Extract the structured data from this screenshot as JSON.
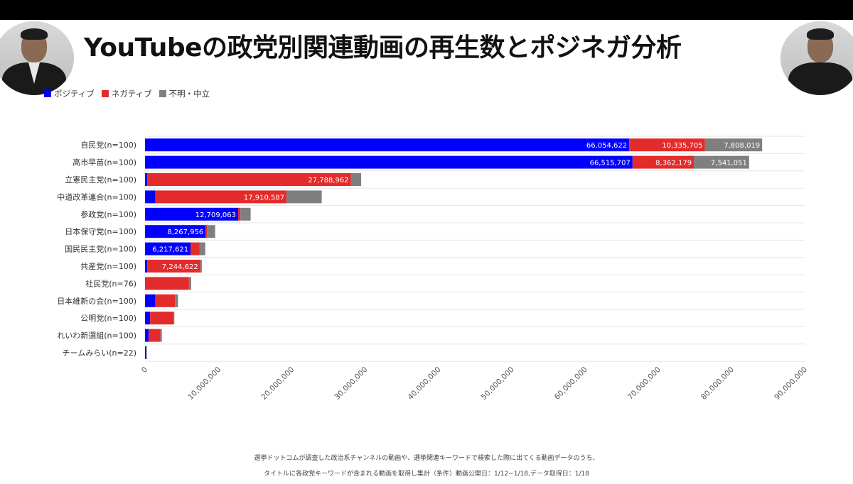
{
  "title": "YouTubeの政党別関連動画の再生数とポジネガ分析",
  "legend": [
    {
      "label": "ポジティブ",
      "color": "#0000ff"
    },
    {
      "label": "ネガティブ",
      "color": "#e32b2b"
    },
    {
      "label": "不明・中立",
      "color": "#7f7f7f"
    }
  ],
  "footnotes": [
    "選挙ドットコムが調査した政治系チャンネルの動画や、選挙関連キーワードで検索した際に出てくる動画データのうち、",
    "タイトルに各政党キーワードが含まれる動画を取得し集計（条件）動画公開日：1/12~1/18,データ取得日：1/18"
  ],
  "chart_data": {
    "type": "bar",
    "orientation": "horizontal",
    "stacked": true,
    "xlim": [
      0,
      90000000
    ],
    "x_ticks": [
      0,
      10000000,
      20000000,
      30000000,
      40000000,
      50000000,
      60000000,
      70000000,
      80000000,
      90000000
    ],
    "x_tick_labels": [
      "0",
      "10,000,000",
      "20,000,000",
      "30,000,000",
      "40,000,000",
      "50,000,000",
      "60,000,000",
      "70,000,000",
      "80,000,000",
      "90,000,000"
    ],
    "categories": [
      "自民党(n=100)",
      "高市早苗(n=100)",
      "立憲民主党(n=100)",
      "中道改革連合(n=100)",
      "参政党(n=100)",
      "日本保守党(n=100)",
      "国民民主党(n=100)",
      "共産党(n=100)",
      "社民党(n=76)",
      "日本維新の会(n=100)",
      "公明党(n=100)",
      "れいわ新選組(n=100)",
      "チームみらい(n=22)"
    ],
    "series": [
      {
        "name": "ポジティブ",
        "color": "#0000ff",
        "values": [
          66054622,
          66515707,
          300000,
          1400000,
          12709063,
          8267956,
          6217621,
          300000,
          0,
          1400000,
          700000,
          500000,
          150000
        ],
        "labels": [
          "66,054,622",
          "66,515,707",
          "",
          "",
          "12,709,063",
          "8,267,956",
          "6,217,621",
          "",
          "",
          "",
          "",
          "",
          ""
        ]
      },
      {
        "name": "ネガティブ",
        "color": "#e32b2b",
        "values": [
          10335705,
          8362179,
          27788962,
          17910587,
          300000,
          200000,
          1200000,
          7244622,
          6000000,
          2700000,
          3200000,
          1600000,
          0
        ],
        "labels": [
          "10,335,705",
          "8,362,179",
          "27,788,962",
          "17,910,587",
          "",
          "",
          "",
          "7,244,622",
          "",
          "",
          "",
          "",
          ""
        ]
      },
      {
        "name": "不明・中立",
        "color": "#7f7f7f",
        "values": [
          7808019,
          7541051,
          1400000,
          4800000,
          1400000,
          1100000,
          800000,
          200000,
          300000,
          400000,
          100000,
          200000,
          100000
        ],
        "labels": [
          "7,808,019",
          "7,541,051",
          "",
          "",
          "",
          "",
          "",
          "",
          "",
          "",
          "",
          "",
          ""
        ]
      }
    ]
  }
}
